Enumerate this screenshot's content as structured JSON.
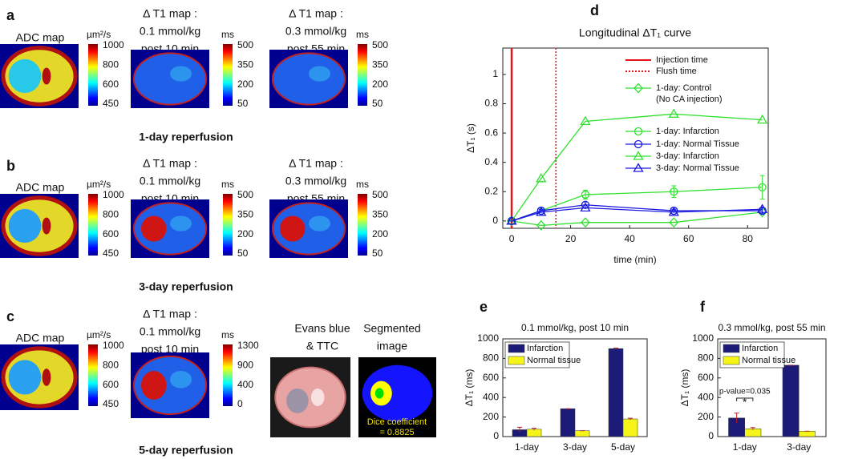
{
  "panels": [
    {
      "label": "a",
      "caption": "1-day reperfusion",
      "maps": [
        {
          "title": [
            "ADC map"
          ],
          "unit": "µm²/s",
          "colorbar": [
            1000,
            800,
            600,
            450
          ]
        },
        {
          "title": [
            "Δ T1 map :",
            "0.1 mmol/kg",
            "post 10 min"
          ],
          "unit": "ms",
          "colorbar": [
            500,
            350,
            200,
            50
          ]
        },
        {
          "title": [
            "Δ T1 map :",
            "0.3 mmol/kg",
            "post 55 min"
          ],
          "unit": "ms",
          "colorbar": [
            500,
            350,
            200,
            50
          ]
        }
      ]
    },
    {
      "label": "b",
      "caption": "3-day reperfusion",
      "maps": [
        {
          "title": [
            "ADC map"
          ],
          "unit": "µm²/s",
          "colorbar": [
            1000,
            800,
            600,
            450
          ]
        },
        {
          "title": [
            "Δ T1 map :",
            "0.1 mmol/kg",
            "post 10 min"
          ],
          "unit": "ms",
          "colorbar": [
            500,
            350,
            200,
            50
          ]
        },
        {
          "title": [
            "Δ T1 map :",
            "0.3 mmol/kg",
            "post 55 min"
          ],
          "unit": "ms",
          "colorbar": [
            500,
            350,
            200,
            50
          ]
        }
      ]
    },
    {
      "label": "c",
      "caption": "5-day reperfusion",
      "maps": [
        {
          "title": [
            "ADC map"
          ],
          "unit": "µm²/s",
          "colorbar": [
            1000,
            800,
            600,
            450
          ]
        },
        {
          "title": [
            "Δ T1 map :",
            "0.1 mmol/kg",
            "post 10 min"
          ],
          "unit": "ms",
          "colorbar": [
            1300,
            900,
            400,
            0
          ]
        },
        {
          "title": [
            "Evans blue",
            "& TTC"
          ]
        },
        {
          "title": [
            "Segmented",
            "image"
          ],
          "annotation": [
            "Dice coefficient",
            "= 0.8825"
          ]
        }
      ]
    }
  ],
  "chart_data": [
    {
      "type": "line",
      "label": "d",
      "title": "Longitudinal   ΔT₁ curve",
      "x_label": "time (min)",
      "y_label": "ΔT₁ (s)",
      "x": [
        0,
        10,
        25,
        55,
        85
      ],
      "xlim": [
        -3,
        87
      ],
      "xticks": [
        0,
        20,
        40,
        60,
        80
      ],
      "ylim": [
        -0.05,
        1.18
      ],
      "yticks": [
        0,
        0.2,
        0.4,
        0.6,
        0.8,
        1
      ],
      "vlines": [
        {
          "name": "Injection time",
          "x": 0,
          "color": "#e8141c",
          "style": "solid"
        },
        {
          "name": "Flush time",
          "x": 15,
          "color": "#e8141c",
          "style": "dotted"
        }
      ],
      "series": [
        {
          "name": "1-day: Control\n(No CA injection)",
          "color": "#2fe02f",
          "marker": "diamond",
          "values": [
            0,
            -0.03,
            -0.01,
            -0.01,
            0.06
          ]
        },
        {
          "name": "1-day: Infarction",
          "color": "#2fe02f",
          "marker": "circle",
          "values": [
            0,
            0.07,
            0.18,
            0.2,
            0.23
          ],
          "errors": [
            0,
            0.01,
            0.03,
            0.04,
            0.08
          ]
        },
        {
          "name": "1-day: Normal Tissue",
          "color": "#1a1ae0",
          "marker": "circle",
          "values": [
            0,
            0.07,
            0.11,
            0.07,
            0.07
          ],
          "errors": [
            0,
            0.01,
            0.02,
            0.01,
            0.02
          ]
        },
        {
          "name": "3-day: Infarction",
          "color": "#2fe02f",
          "marker": "triangle",
          "values": [
            0,
            0.29,
            0.68,
            0.73,
            0.69
          ]
        },
        {
          "name": "3-day: Normal Tissue",
          "color": "#1a1ae0",
          "marker": "triangle",
          "values": [
            0,
            0.06,
            0.09,
            0.06,
            0.08
          ]
        }
      ]
    },
    {
      "type": "bar",
      "label": "e",
      "title": "0.1 mmol/kg, post 10 min",
      "y_label": "ΔT₁ (ms)",
      "categories": [
        "1-day",
        "3-day",
        "5-day"
      ],
      "ylim": [
        0,
        1000
      ],
      "yticks": [
        0,
        200,
        400,
        600,
        800,
        1000
      ],
      "legend": "upper left",
      "series": [
        {
          "name": "Infarction",
          "color": "#1c1c78",
          "values": [
            70,
            285,
            900
          ],
          "errors": [
            25,
            0,
            5
          ]
        },
        {
          "name": "Normal tissue",
          "color": "#f5f51a",
          "values": [
            75,
            60,
            180
          ],
          "errors": [
            10,
            0,
            8
          ]
        }
      ]
    },
    {
      "type": "bar",
      "label": "f",
      "title": "0.3 mmol/kg, post 55 min",
      "y_label": "ΔT₁ (ms)",
      "categories": [
        "1-day",
        "3-day"
      ],
      "ylim": [
        0,
        1000
      ],
      "yticks": [
        0,
        200,
        400,
        600,
        800,
        1000
      ],
      "legend": "upper left",
      "annotations": [
        "p-value=0.035",
        "*"
      ],
      "series": [
        {
          "name": "Infarction",
          "color": "#1c1c78",
          "values": [
            190,
            730
          ],
          "errors": [
            50,
            0
          ]
        },
        {
          "name": "Normal tissue",
          "color": "#f5f51a",
          "values": [
            80,
            55
          ],
          "errors": [
            12,
            0
          ]
        }
      ]
    }
  ]
}
